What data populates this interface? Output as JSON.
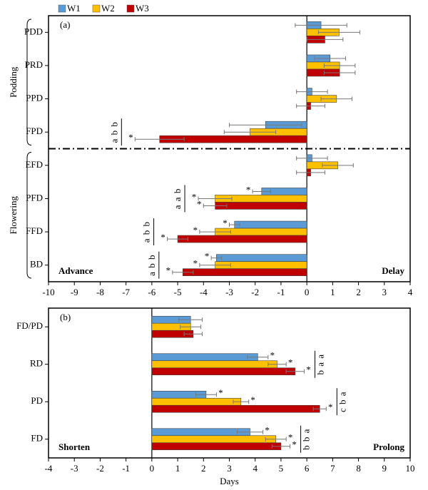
{
  "chart_data": [
    {
      "type": "bar",
      "orientation": "horizontal",
      "label": "(a)",
      "categories": [
        "PDD",
        "PRD",
        "PPD",
        "FPD",
        "EFD",
        "PFD",
        "FFD",
        "BD"
      ],
      "groups": [
        {
          "name": "Podding",
          "categories": [
            "PDD",
            "PRD",
            "PPD",
            "FPD"
          ]
        },
        {
          "name": "Flowering",
          "categories": [
            "EFD",
            "PFD",
            "FFD",
            "BD"
          ]
        }
      ],
      "series": [
        {
          "name": "W1",
          "color": "#5b9bd5",
          "values": [
            0.55,
            0.9,
            0.2,
            -1.6,
            0.2,
            -1.75,
            -2.8,
            -3.5
          ],
          "errors": [
            1.0,
            0.6,
            0.6,
            1.4,
            0.6,
            0.35,
            0.2,
            0.2
          ],
          "stars": [
            null,
            null,
            null,
            null,
            null,
            "*",
            "*",
            "*"
          ]
        },
        {
          "name": "W2",
          "color": "#ffc000",
          "values": [
            1.25,
            1.27,
            1.15,
            -2.2,
            1.2,
            -3.55,
            -3.55,
            -3.55
          ],
          "errors": [
            0.8,
            0.6,
            0.6,
            1.0,
            0.6,
            0.65,
            0.6,
            0.6
          ],
          "stars": [
            null,
            null,
            null,
            null,
            null,
            "*",
            "*",
            "*"
          ]
        },
        {
          "name": "W3",
          "color": "#c00000",
          "values": [
            0.7,
            1.27,
            0.15,
            -5.7,
            0.15,
            -3.55,
            -5.0,
            -4.8
          ],
          "errors": [
            0.7,
            0.6,
            0.55,
            0.95,
            0.55,
            0.45,
            0.4,
            0.4
          ],
          "stars": [
            null,
            null,
            null,
            "*",
            null,
            "*",
            "*",
            "*"
          ]
        }
      ],
      "letters": [
        null,
        null,
        null,
        "a b b",
        null,
        "a a b",
        "a b b",
        "a b b"
      ],
      "corner_labels": {
        "left": "Advance",
        "right": "Delay"
      },
      "xlim": [
        -10,
        4
      ],
      "xticks": [
        -10,
        -9,
        -8,
        -7,
        -6,
        -5,
        -4,
        -3,
        -2,
        -1,
        0,
        1,
        2,
        3,
        4
      ]
    },
    {
      "type": "bar",
      "orientation": "horizontal",
      "label": "(b)",
      "categories": [
        "FD/PD",
        "RD",
        "PD",
        "FD"
      ],
      "series": [
        {
          "color": "#5b9bd5",
          "values": [
            1.5,
            4.1,
            2.1,
            3.8
          ],
          "errors": [
            0.45,
            0.4,
            0.4,
            0.5
          ],
          "stars": [
            null,
            "*",
            "*",
            "*"
          ]
        },
        {
          "color": "#ffc000",
          "values": [
            1.5,
            4.85,
            3.45,
            4.8
          ],
          "errors": [
            0.4,
            0.35,
            0.3,
            0.4
          ],
          "stars": [
            null,
            "*",
            "*",
            "*"
          ]
        },
        {
          "color": "#c00000",
          "values": [
            1.6,
            5.55,
            6.5,
            5.0
          ],
          "errors": [
            0.35,
            0.35,
            0.25,
            0.35
          ],
          "stars": [
            null,
            "*",
            "*",
            "*"
          ]
        }
      ],
      "letters": [
        null,
        "b a a",
        "c b a",
        "b b a"
      ],
      "corner_labels": {
        "left": "Shorten",
        "right": "Prolong"
      },
      "xlabel": "Days",
      "xlim": [
        -4,
        10
      ],
      "xticks": [
        -4,
        -3,
        -2,
        -1,
        0,
        1,
        2,
        3,
        4,
        5,
        6,
        7,
        8,
        9,
        10
      ]
    }
  ]
}
